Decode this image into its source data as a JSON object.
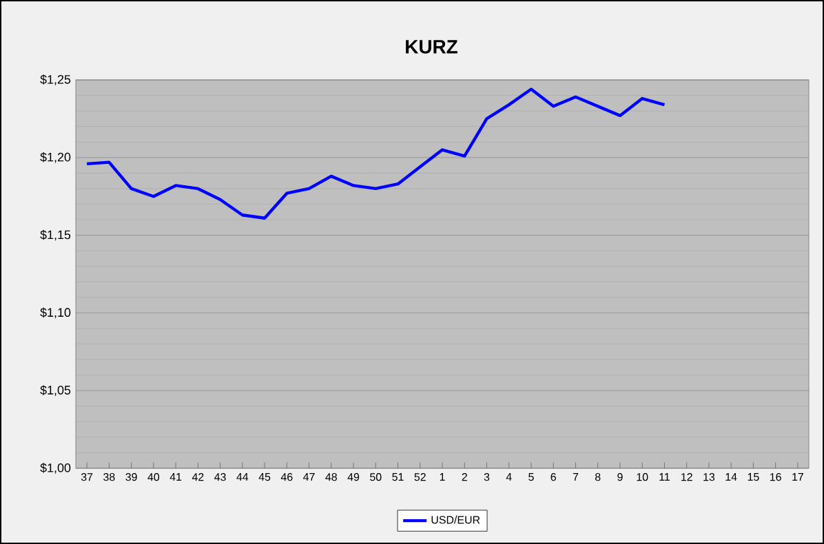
{
  "chart_data": {
    "type": "line",
    "title": "KURZ",
    "categories": [
      "37",
      "38",
      "39",
      "40",
      "41",
      "42",
      "43",
      "44",
      "45",
      "46",
      "47",
      "48",
      "49",
      "50",
      "51",
      "52",
      "1",
      "2",
      "3",
      "4",
      "5",
      "6",
      "7",
      "8",
      "9",
      "10",
      "11",
      "12",
      "13",
      "14",
      "15",
      "16",
      "17"
    ],
    "series": [
      {
        "name": "USD/EUR",
        "color": "#0000ff",
        "values": [
          1.196,
          1.197,
          1.18,
          1.175,
          1.182,
          1.18,
          1.173,
          1.163,
          1.161,
          1.177,
          1.18,
          1.188,
          1.182,
          1.18,
          1.183,
          1.194,
          1.205,
          1.201,
          1.225,
          1.234,
          1.244,
          1.233,
          1.239,
          1.233,
          1.227,
          1.238,
          1.234,
          null,
          null,
          null,
          null,
          null,
          null
        ]
      }
    ],
    "ylim": [
      1.0,
      1.25
    ],
    "yticks": [
      {
        "value": 1.0,
        "label": "$1,00"
      },
      {
        "value": 1.05,
        "label": "$1,05"
      },
      {
        "value": 1.1,
        "label": "$1,10"
      },
      {
        "value": 1.15,
        "label": "$1,15"
      },
      {
        "value": 1.2,
        "label": "$1,20"
      },
      {
        "value": 1.25,
        "label": "$1,25"
      }
    ],
    "grid": "y",
    "legend": "bottom",
    "marker": "none",
    "line_style": "solid"
  }
}
